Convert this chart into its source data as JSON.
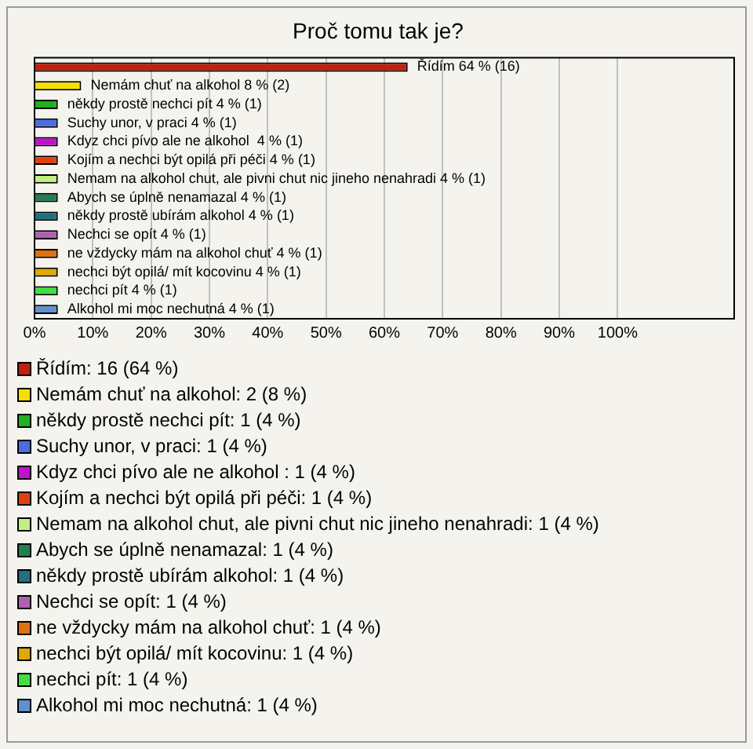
{
  "chart_data": {
    "type": "bar",
    "orientation": "horizontal",
    "title": "Proč tomu tak je?",
    "categories": [
      null,
      null,
      null,
      null,
      null,
      null,
      null,
      null,
      null,
      null,
      null,
      null,
      null,
      null
    ],
    "series": [
      {
        "name": "Řídím: 16 (64 %)",
        "color": "#c0200f",
        "values": [
          64,
          null,
          null,
          null,
          null,
          null,
          null,
          null,
          null,
          null,
          null,
          null,
          null,
          null
        ],
        "value_labels": [
          "Řídím 64 % (16)",
          null,
          null,
          null,
          null,
          null,
          null,
          null,
          null,
          null,
          null,
          null,
          null,
          null
        ]
      },
      {
        "name": "Nemám chuť na alkohol: 2 (8 %)",
        "color": "#f5e000",
        "values": [
          null,
          8,
          null,
          null,
          null,
          null,
          null,
          null,
          null,
          null,
          null,
          null,
          null,
          null
        ],
        "value_labels": [
          null,
          "Nemám chuť na alkohol 8 % (2)",
          null,
          null,
          null,
          null,
          null,
          null,
          null,
          null,
          null,
          null,
          null,
          null
        ]
      },
      {
        "name": "někdy prostě nechci pít: 1 (4 %)",
        "color": "#20b020",
        "values": [
          null,
          null,
          4,
          null,
          null,
          null,
          null,
          null,
          null,
          null,
          null,
          null,
          null,
          null
        ],
        "value_labels": [
          null,
          null,
          "někdy prostě nechci pít 4 % (1)",
          null,
          null,
          null,
          null,
          null,
          null,
          null,
          null,
          null,
          null,
          null
        ]
      },
      {
        "name": "Suchy unor, v praci: 1 (4 %)",
        "color": "#4a6ee0",
        "values": [
          null,
          null,
          null,
          4,
          null,
          null,
          null,
          null,
          null,
          null,
          null,
          null,
          null,
          null
        ],
        "value_labels": [
          null,
          null,
          null,
          "Suchy unor, v praci 4 % (1)",
          null,
          null,
          null,
          null,
          null,
          null,
          null,
          null,
          null,
          null
        ]
      },
      {
        "name": "Kdyz chci pívo ale ne alkohol : 1 (4 %)",
        "color": "#c010d0",
        "values": [
          null,
          null,
          null,
          null,
          4,
          null,
          null,
          null,
          null,
          null,
          null,
          null,
          null,
          null
        ],
        "value_labels": [
          null,
          null,
          null,
          null,
          "Kdyz chci pívo ale ne alkohol  4 % (1)",
          null,
          null,
          null,
          null,
          null,
          null,
          null,
          null,
          null
        ]
      },
      {
        "name": "Kojím a nechci být opilá při péči: 1 (4 %)",
        "color": "#e04010",
        "values": [
          null,
          null,
          null,
          null,
          null,
          4,
          null,
          null,
          null,
          null,
          null,
          null,
          null,
          null
        ],
        "value_labels": [
          null,
          null,
          null,
          null,
          null,
          "Kojím a nechci být opilá při péči 4 % (1)",
          null,
          null,
          null,
          null,
          null,
          null,
          null,
          null
        ]
      },
      {
        "name": "Nemam na alkohol chut, ale pivni chut nic jineho nenahradi: 1 (4 %)",
        "color": "#c0f080",
        "values": [
          null,
          null,
          null,
          null,
          null,
          null,
          4,
          null,
          null,
          null,
          null,
          null,
          null,
          null
        ],
        "value_labels": [
          null,
          null,
          null,
          null,
          null,
          null,
          "Nemam na alkohol chut, ale pivni chut nic jineho nenahradi 4 % (1)",
          null,
          null,
          null,
          null,
          null,
          null,
          null
        ]
      },
      {
        "name": "Abych se úplně nenamazal: 1 (4 %)",
        "color": "#208050",
        "values": [
          null,
          null,
          null,
          null,
          null,
          null,
          null,
          4,
          null,
          null,
          null,
          null,
          null,
          null
        ],
        "value_labels": [
          null,
          null,
          null,
          null,
          null,
          null,
          null,
          "Abych se úplně nenamazal 4 % (1)",
          null,
          null,
          null,
          null,
          null,
          null
        ]
      },
      {
        "name": "někdy prostě ubírám alkohol: 1 (4 %)",
        "color": "#207080",
        "values": [
          null,
          null,
          null,
          null,
          null,
          null,
          null,
          null,
          4,
          null,
          null,
          null,
          null,
          null
        ],
        "value_labels": [
          null,
          null,
          null,
          null,
          null,
          null,
          null,
          null,
          "někdy prostě ubírám alkohol 4 % (1)",
          null,
          null,
          null,
          null,
          null
        ]
      },
      {
        "name": "Nechci se opít: 1 (4 %)",
        "color": "#b060b0",
        "values": [
          null,
          null,
          null,
          null,
          null,
          null,
          null,
          null,
          null,
          4,
          null,
          null,
          null,
          null
        ],
        "value_labels": [
          null,
          null,
          null,
          null,
          null,
          null,
          null,
          null,
          null,
          "Nechci se opít 4 % (1)",
          null,
          null,
          null,
          null
        ]
      },
      {
        "name": "ne vždycky mám na alkohol chuť: 1 (4 %)",
        "color": "#e07010",
        "values": [
          null,
          null,
          null,
          null,
          null,
          null,
          null,
          null,
          null,
          null,
          4,
          null,
          null,
          null
        ],
        "value_labels": [
          null,
          null,
          null,
          null,
          null,
          null,
          null,
          null,
          null,
          null,
          "ne vždycky mám na alkohol chuť 4 % (1)",
          null,
          null,
          null
        ]
      },
      {
        "name": "nechci být opilá/ mít kocovinu: 1 (4 %)",
        "color": "#e0a800",
        "values": [
          null,
          null,
          null,
          null,
          null,
          null,
          null,
          null,
          null,
          null,
          null,
          4,
          null,
          null
        ],
        "value_labels": [
          null,
          null,
          null,
          null,
          null,
          null,
          null,
          null,
          null,
          null,
          null,
          "nechci být opilá/ mít kocovinu 4 % (1)",
          null,
          null
        ]
      },
      {
        "name": "nechci pít: 1 (4 %)",
        "color": "#40e040",
        "values": [
          null,
          null,
          null,
          null,
          null,
          null,
          null,
          null,
          null,
          null,
          null,
          null,
          4,
          null
        ],
        "value_labels": [
          null,
          null,
          null,
          null,
          null,
          null,
          null,
          null,
          null,
          null,
          null,
          null,
          "nechci pít 4 % (1)",
          null
        ]
      },
      {
        "name": "Alkohol mi moc nechutná: 1 (4 %)",
        "color": "#6090d0",
        "values": [
          null,
          null,
          null,
          null,
          null,
          null,
          null,
          null,
          null,
          null,
          null,
          null,
          null,
          4
        ],
        "value_labels": [
          null,
          null,
          null,
          null,
          null,
          null,
          null,
          null,
          null,
          null,
          null,
          null,
          null,
          "Alkohol mi moc nechutná 4 % (1)"
        ]
      }
    ],
    "xlim": [
      0,
      120
    ],
    "xticks": [
      {
        "value": 0,
        "label": "0%"
      },
      {
        "value": 10,
        "label": "10%"
      },
      {
        "value": 20,
        "label": "20%"
      },
      {
        "value": 30,
        "label": "30%"
      },
      {
        "value": 40,
        "label": "40%"
      },
      {
        "value": 50,
        "label": "50%"
      },
      {
        "value": 60,
        "label": "60%"
      },
      {
        "value": 70,
        "label": "70%"
      },
      {
        "value": 80,
        "label": "80%"
      },
      {
        "value": 90,
        "label": "90%"
      },
      {
        "value": 100,
        "label": "100%"
      }
    ],
    "grid": "x",
    "legend": "bottom",
    "tick_labels": "x"
  }
}
